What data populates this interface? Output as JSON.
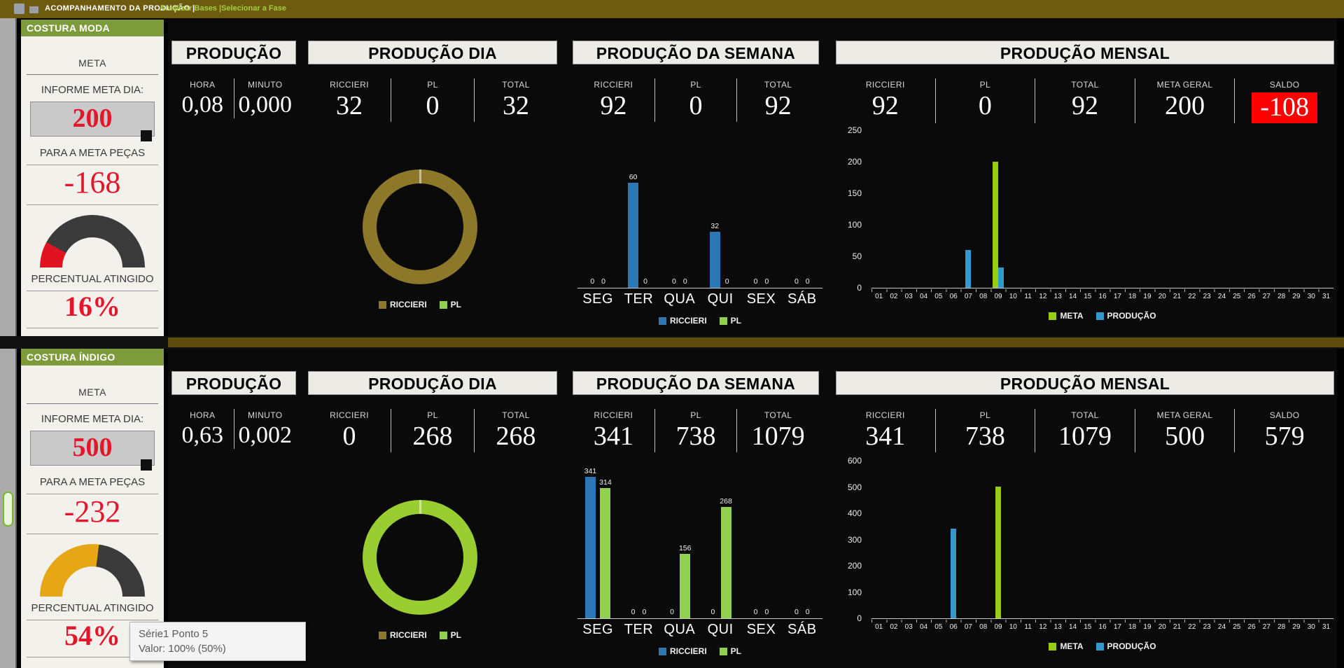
{
  "topbar": {
    "title": "ACOMPANHAMENTO DA PRODUÇÃO  |",
    "menu": [
      {
        "label": "Atualizar Bases |"
      },
      {
        "label": "Selecionar a Fase"
      }
    ]
  },
  "month_days": [
    "01",
    "02",
    "03",
    "04",
    "05",
    "06",
    "07",
    "08",
    "09",
    "10",
    "11",
    "12",
    "13",
    "14",
    "15",
    "16",
    "17",
    "18",
    "19",
    "20",
    "21",
    "22",
    "23",
    "24",
    "25",
    "26",
    "27",
    "28",
    "29",
    "30",
    "31"
  ],
  "tooltip": {
    "line1": "Série1 Ponto 5",
    "line2": "Valor: 100% (50%)"
  },
  "sections": [
    {
      "name": "COSTURA MODA",
      "sidebar": {
        "meta_label": "META",
        "informe_label": "INFORME META DIA:",
        "meta_value": "200",
        "para_label": "PARA A META PEÇAS",
        "para_value": "-168",
        "percent_label": "PERCENTUAL ATINGIDO",
        "percent_value": "16%",
        "gauge": {
          "pct": 16,
          "color": "#E01323",
          "track": "#3A3A3A"
        }
      },
      "producao": {
        "title": "PRODUÇÃO",
        "cols": [
          {
            "label": "HORA",
            "value": "0,08"
          },
          {
            "label": "MINUTO",
            "value": "0,000"
          }
        ]
      },
      "dia": {
        "title": "PRODUÇÃO DIA",
        "cols": [
          {
            "label": "RICCIERI",
            "value": "32"
          },
          {
            "label": "PL",
            "value": "0"
          },
          {
            "label": "TOTAL",
            "value": "32"
          }
        ]
      },
      "semana": {
        "title": "PRODUÇÃO DA SEMANA",
        "cols": [
          {
            "label": "RICCIERI",
            "value": "92"
          },
          {
            "label": "PL",
            "value": "0"
          },
          {
            "label": "TOTAL",
            "value": "92"
          }
        ]
      },
      "mensal": {
        "title": "PRODUÇÃO MENSAL",
        "saldo_negative": true,
        "cols": [
          {
            "label": "RICCIERI",
            "value": "92"
          },
          {
            "label": "PL",
            "value": "0"
          },
          {
            "label": "TOTAL",
            "value": "92"
          },
          {
            "label": "META GERAL",
            "value": "200"
          },
          {
            "label": "SALDO",
            "value": "-108"
          }
        ]
      },
      "donut": {
        "type": "donut",
        "ring_color": "#8D7829",
        "values": [
          100,
          0
        ],
        "legend": [
          {
            "label": "RICCIERI",
            "color": "#8D7829"
          },
          {
            "label": "PL",
            "color": "#92D050"
          }
        ]
      },
      "week_chart": {
        "type": "bar",
        "categories": [
          "SEG",
          "TER",
          "QUA",
          "QUI",
          "SEX",
          "SÁB"
        ],
        "ymax": 90,
        "series": [
          {
            "name": "RICCIERI",
            "color": "#2E77B5",
            "values": [
              0,
              60,
              0,
              32,
              0,
              0
            ]
          },
          {
            "name": "PL",
            "color": "#92D050",
            "values": [
              0,
              0,
              0,
              0,
              0,
              0
            ]
          }
        ]
      },
      "month_chart": {
        "type": "bar",
        "ymax": 250,
        "yticks": [
          0,
          50,
          100,
          150,
          200,
          250
        ],
        "series": [
          {
            "name": "META",
            "color": "#97CE14",
            "values_by_day": {
              "09": 200
            }
          },
          {
            "name": "PRODUÇÃO",
            "color": "#3399CC",
            "values_by_day": {
              "07": 60,
              "09": 32
            }
          }
        ]
      }
    },
    {
      "name": "COSTURA ÍNDIGO",
      "sidebar": {
        "meta_label": "META",
        "informe_label": "INFORME META DIA:",
        "meta_value": "500",
        "para_label": "PARA A META PEÇAS",
        "para_value": "-232",
        "percent_label": "PERCENTUAL ATINGIDO",
        "percent_value": "54%",
        "gauge": {
          "pct": 54,
          "color": "#E7A614",
          "track": "#3A3A3A"
        }
      },
      "producao": {
        "title": "PRODUÇÃO",
        "cols": [
          {
            "label": "HORA",
            "value": "0,63"
          },
          {
            "label": "MINUTO",
            "value": "0,002"
          }
        ]
      },
      "dia": {
        "title": "PRODUÇÃO DIA",
        "cols": [
          {
            "label": "RICCIERI",
            "value": "0"
          },
          {
            "label": "PL",
            "value": "268"
          },
          {
            "label": "TOTAL",
            "value": "268"
          }
        ]
      },
      "semana": {
        "title": "PRODUÇÃO DA SEMANA",
        "cols": [
          {
            "label": "RICCIERI",
            "value": "341"
          },
          {
            "label": "PL",
            "value": "738"
          },
          {
            "label": "TOTAL",
            "value": "1079"
          }
        ]
      },
      "mensal": {
        "title": "PRODUÇÃO MENSAL",
        "saldo_negative": false,
        "cols": [
          {
            "label": "RICCIERI",
            "value": "341"
          },
          {
            "label": "PL",
            "value": "738"
          },
          {
            "label": "TOTAL",
            "value": "1079"
          },
          {
            "label": "META GERAL",
            "value": "500"
          },
          {
            "label": "SALDO",
            "value": "579"
          }
        ]
      },
      "donut": {
        "type": "donut",
        "ring_color": "#9ACD32",
        "values": [
          0,
          100
        ],
        "legend": [
          {
            "label": "RICCIERI",
            "color": "#8D7829"
          },
          {
            "label": "PL",
            "color": "#92D050"
          }
        ]
      },
      "week_chart": {
        "type": "bar",
        "categories": [
          "SEG",
          "TER",
          "QUA",
          "QUI",
          "SEX",
          "SÁB"
        ],
        "ymax": 380,
        "series": [
          {
            "name": "RICCIERI",
            "color": "#2E77B5",
            "values": [
              341,
              0,
              0,
              0,
              0,
              0
            ]
          },
          {
            "name": "PL",
            "color": "#92D050",
            "values": [
              314,
              0,
              156,
              268,
              0,
              0
            ]
          }
        ]
      },
      "month_chart": {
        "type": "bar",
        "ymax": 600,
        "yticks": [
          0,
          100,
          200,
          300,
          400,
          500,
          600
        ],
        "series": [
          {
            "name": "META",
            "color": "#97CE14",
            "values_by_day": {
              "09": 500
            }
          },
          {
            "name": "PRODUÇÃO",
            "color": "#3399CC",
            "values_by_day": {
              "06": 341
            }
          }
        ]
      }
    }
  ]
}
